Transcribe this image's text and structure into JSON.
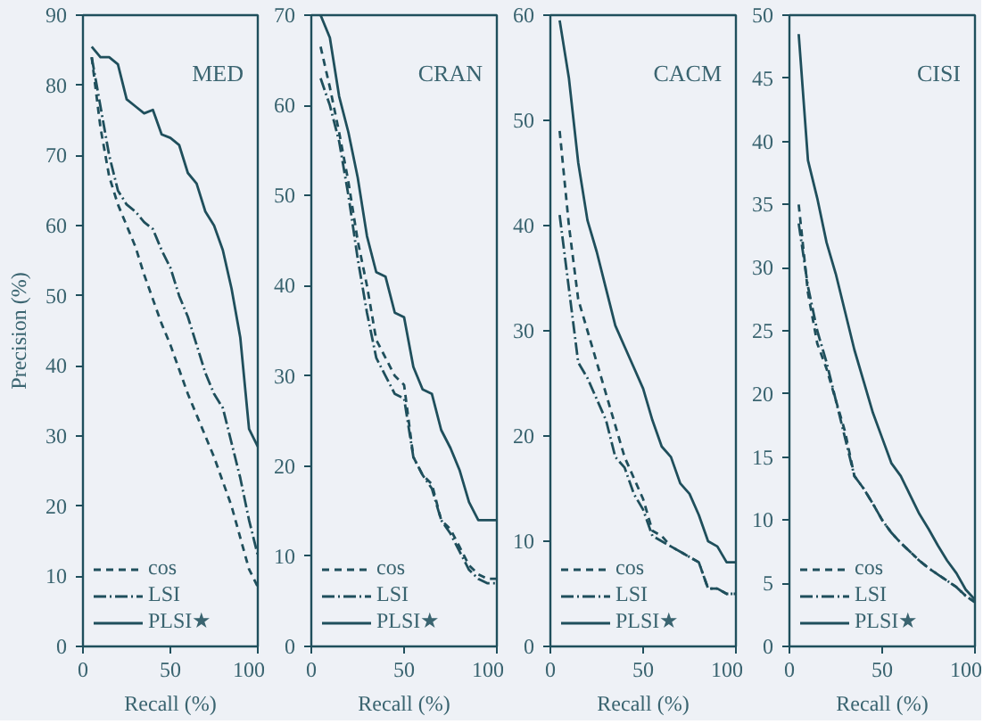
{
  "chart_data": [
    {
      "type": "line",
      "ylabel": "Precision (%)",
      "xlabel": "Recall (%)",
      "annotations": [
        "MED"
      ],
      "xlim": [
        0,
        100
      ],
      "xticks": [
        0,
        50,
        100
      ],
      "ylim": [
        0,
        90
      ],
      "yticks": [
        0,
        10,
        20,
        30,
        40,
        50,
        60,
        70,
        80,
        90
      ],
      "legend": "bottom left",
      "grid": false,
      "x": [
        5,
        10,
        15,
        20,
        25,
        30,
        35,
        40,
        45,
        50,
        55,
        60,
        65,
        70,
        75,
        80,
        85,
        90,
        95,
        100
      ],
      "series": [
        {
          "name": "cos",
          "color": "#1f4f5c",
          "line_style": "dashed",
          "values": [
            84,
            74,
            67,
            63,
            60,
            57,
            53,
            49.5,
            46,
            43,
            39.5,
            36,
            33,
            30,
            27,
            23.5,
            20,
            15.5,
            11,
            8.5
          ]
        },
        {
          "name": "LSI",
          "color": "#1f4f5c",
          "line_style": "dashdot",
          "values": [
            84,
            77,
            70,
            65,
            63,
            62,
            60.5,
            59.5,
            56.5,
            54,
            50,
            47,
            43,
            39,
            36,
            34,
            29,
            24,
            18,
            13
          ]
        },
        {
          "name": "PLSI★",
          "color": "#1f4f5c",
          "line_style": "solid",
          "values": [
            85.5,
            84,
            84,
            83,
            78,
            77,
            76,
            76.5,
            73,
            72.5,
            71.5,
            67.5,
            66,
            62,
            60,
            56.5,
            51,
            44,
            31,
            28.5
          ]
        }
      ]
    },
    {
      "type": "line",
      "xlabel": "Recall (%)",
      "annotations": [
        "CRAN"
      ],
      "xlim": [
        0,
        100
      ],
      "xticks": [
        0,
        50,
        100
      ],
      "ylim": [
        0,
        70
      ],
      "yticks": [
        0,
        10,
        20,
        30,
        40,
        50,
        60,
        70
      ],
      "legend": "bottom left",
      "grid": false,
      "x": [
        5,
        10,
        15,
        20,
        25,
        30,
        35,
        40,
        45,
        50,
        55,
        60,
        65,
        70,
        75,
        80,
        85,
        90,
        95,
        100
      ],
      "series": [
        {
          "name": "cos",
          "color": "#1f4f5c",
          "line_style": "dashed",
          "values": [
            66.5,
            62,
            57,
            51.5,
            45,
            40,
            34,
            32,
            30,
            29,
            21,
            19,
            18,
            14,
            13,
            11,
            9,
            8,
            7.5,
            7.5
          ]
        },
        {
          "name": "LSI",
          "color": "#1f4f5c",
          "line_style": "dashdot",
          "values": [
            63,
            60,
            56,
            50,
            43,
            37,
            32,
            30,
            28,
            27.5,
            21,
            19,
            17.5,
            14,
            12.5,
            10.5,
            8.5,
            7.5,
            7,
            7
          ]
        },
        {
          "name": "PLSI★",
          "color": "#1f4f5c",
          "line_style": "solid",
          "values": [
            70,
            67.5,
            61,
            57,
            52,
            45.5,
            41.5,
            41,
            37,
            36.5,
            31,
            28.5,
            28,
            24,
            22,
            19.5,
            16,
            14,
            14,
            14
          ]
        }
      ]
    },
    {
      "type": "line",
      "xlabel": "Recall (%)",
      "annotations": [
        "CACM"
      ],
      "xlim": [
        0,
        100
      ],
      "xticks": [
        0,
        50,
        100
      ],
      "ylim": [
        0,
        60
      ],
      "yticks": [
        0,
        10,
        20,
        30,
        40,
        50,
        60
      ],
      "legend": "bottom left",
      "grid": false,
      "x": [
        5,
        10,
        15,
        20,
        25,
        30,
        35,
        40,
        45,
        50,
        55,
        60,
        65,
        70,
        75,
        80,
        85,
        90,
        95,
        100
      ],
      "series": [
        {
          "name": "cos",
          "color": "#1f4f5c",
          "line_style": "dashed",
          "values": [
            49,
            40,
            33,
            30,
            27,
            24,
            21,
            18,
            16,
            14,
            11,
            10.5,
            9.5,
            9,
            8.5,
            8,
            5.5,
            5.5,
            5,
            5
          ]
        },
        {
          "name": "LSI",
          "color": "#1f4f5c",
          "line_style": "dashdot",
          "values": [
            41,
            34,
            27,
            25.5,
            23.5,
            21.5,
            18,
            17,
            14.5,
            13,
            10.5,
            10,
            9.5,
            9,
            8.5,
            8,
            5.5,
            5.5,
            5,
            5
          ]
        },
        {
          "name": "PLSI★",
          "color": "#1f4f5c",
          "line_style": "solid",
          "values": [
            59.5,
            54,
            46,
            40.5,
            37.5,
            34,
            30.5,
            28.5,
            26.5,
            24.5,
            21.5,
            19,
            18,
            15.5,
            14.5,
            12.5,
            10,
            9.5,
            8,
            8
          ]
        }
      ]
    },
    {
      "type": "line",
      "xlabel": "Recall (%)",
      "annotations": [
        "CISI"
      ],
      "xlim": [
        0,
        100
      ],
      "xticks": [
        0,
        50,
        100
      ],
      "ylim": [
        0,
        50
      ],
      "yticks": [
        0,
        5,
        10,
        15,
        20,
        25,
        30,
        35,
        40,
        45,
        50
      ],
      "legend": "bottom left",
      "grid": false,
      "x": [
        5,
        10,
        15,
        20,
        25,
        30,
        35,
        40,
        45,
        50,
        55,
        60,
        65,
        70,
        75,
        80,
        85,
        90,
        95,
        100
      ],
      "series": [
        {
          "name": "cos",
          "color": "#1f4f5c",
          "line_style": "dashed",
          "values": [
            35,
            28,
            24,
            22,
            19.5,
            17,
            13.5,
            12.5,
            11.3,
            10,
            9,
            8.2,
            7.5,
            6.8,
            6.2,
            5.7,
            5.2,
            4.7,
            4,
            3.5
          ]
        },
        {
          "name": "LSI",
          "color": "#1f4f5c",
          "line_style": "dashdot",
          "values": [
            33.5,
            28.5,
            25,
            22.5,
            19.5,
            16.5,
            13.5,
            12.5,
            11.3,
            10,
            9,
            8.2,
            7.5,
            6.8,
            6.2,
            5.7,
            5.2,
            4.7,
            4,
            3.5
          ]
        },
        {
          "name": "PLSI★",
          "color": "#1f4f5c",
          "line_style": "solid",
          "values": [
            48.5,
            38.5,
            35.5,
            32,
            29.5,
            26.5,
            23.5,
            21,
            18.5,
            16.5,
            14.5,
            13.5,
            12,
            10.5,
            9.3,
            8,
            6.8,
            5.8,
            4.5,
            3.7
          ]
        }
      ]
    }
  ]
}
